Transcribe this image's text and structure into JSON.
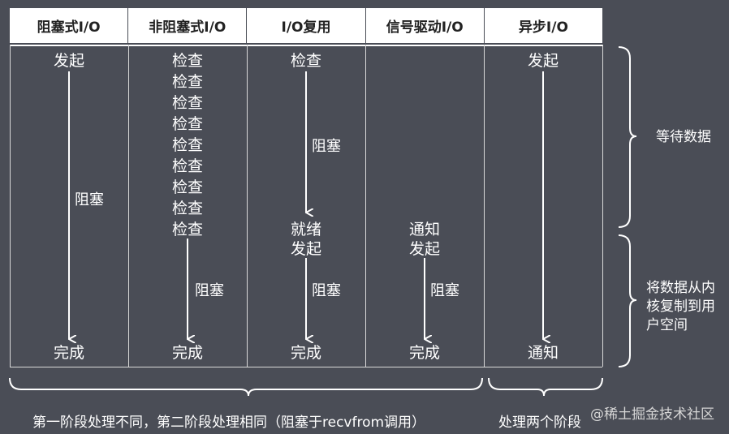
{
  "headers": [
    "阻塞式I/O",
    "非阻塞式I/O",
    "I/O复用",
    "信号驱动I/O",
    "异步I/O"
  ],
  "col1": {
    "start": "发起",
    "block": "阻塞",
    "end": "完成"
  },
  "col2": {
    "checks": [
      "检查",
      "检查",
      "检查",
      "检查",
      "检查",
      "检查",
      "检查",
      "检查",
      "检查"
    ],
    "block": "阻塞",
    "end": "完成"
  },
  "col3": {
    "check": "检查",
    "block1": "阻塞",
    "ready": "就绪",
    "start2": "发起",
    "block2": "阻塞",
    "end": "完成"
  },
  "col4": {
    "notify": "通知",
    "start": "发起",
    "block": "阻塞",
    "end": "完成"
  },
  "col5": {
    "start": "发起",
    "end": "通知"
  },
  "side": {
    "phase1": "等待数据",
    "phase2_line1": "将数据从内",
    "phase2_line2": "核复制到用",
    "phase2_line3": "户空间"
  },
  "bottom": {
    "left": "第一阶段处理不同，第二阶段处理相同（阻塞于recvfrom调用）",
    "right": "处理两个阶段"
  },
  "watermark": "@稀土掘金技术社区"
}
